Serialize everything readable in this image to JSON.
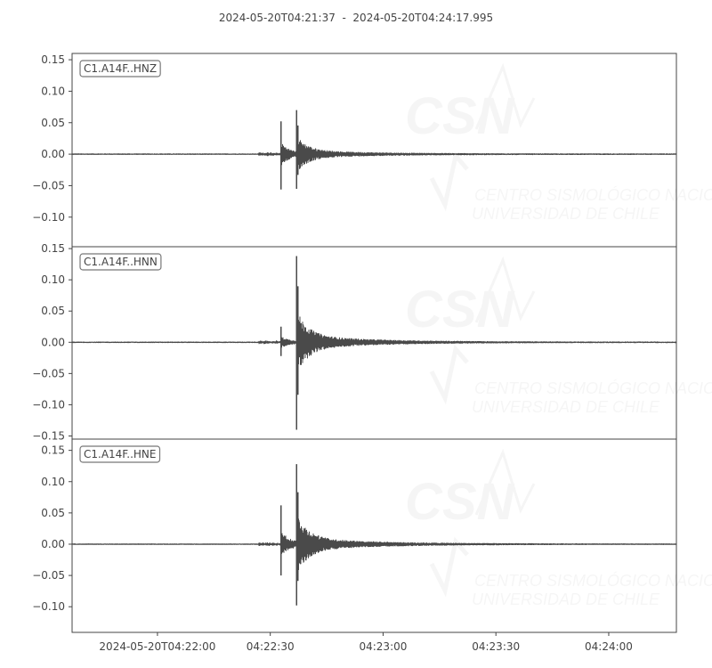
{
  "chart_data": {
    "type": "line",
    "title": "2024-05-20T04:21:37  -  2024-05-20T04:24:17.995",
    "xlim": [
      "04:21:37",
      "04:24:17.995"
    ],
    "x_ticks": [
      {
        "time": "04:22:00",
        "label": "2024-05-20T04:22:00"
      },
      {
        "time": "04:22:30",
        "label": "04:22:30"
      },
      {
        "time": "04:23:00",
        "label": "04:23:00"
      },
      {
        "time": "04:23:30",
        "label": "04:23:30"
      },
      {
        "time": "04:24:00",
        "label": "04:24:00"
      }
    ],
    "line_color": "#4a4a4a",
    "grid": false,
    "watermark": {
      "logo": "CSN",
      "line1": "CENTRO SISMOLÓGICO NACIONAL",
      "line2": "UNIVERSIDAD DE CHILE"
    },
    "series": [
      {
        "name": "C1.A14F..HNZ",
        "ylim": [
          -0.147,
          0.16
        ],
        "y_ticks": [
          0.15,
          0.1,
          0.05,
          0.0,
          -0.05,
          -0.1
        ],
        "y_tick_labels": [
          "0.15",
          "0.10",
          "0.05",
          "0.00",
          "−0.05",
          "−0.10"
        ],
        "p_arrival": "04:22:32.8",
        "s_arrival": "04:22:37.0",
        "p_peak": [
          0.052,
          -0.056
        ],
        "s_peak": [
          0.07,
          -0.055
        ]
      },
      {
        "name": "C1.A14F..HNN",
        "ylim": [
          -0.155,
          0.153
        ],
        "y_ticks": [
          0.15,
          0.1,
          0.05,
          0.0,
          -0.05,
          -0.1,
          -0.15
        ],
        "y_tick_labels": [
          "0.15",
          "0.10",
          "0.05",
          "0.00",
          "−0.05",
          "−0.10",
          "−0.15"
        ],
        "p_arrival": "04:22:32.8",
        "s_arrival": "04:22:37.0",
        "p_peak": [
          0.025,
          -0.022
        ],
        "s_peak": [
          0.138,
          -0.14
        ]
      },
      {
        "name": "C1.A14F..HNE",
        "ylim": [
          -0.141,
          0.168
        ],
        "y_ticks": [
          0.15,
          0.1,
          0.05,
          0.0,
          -0.05,
          -0.1
        ],
        "y_tick_labels": [
          "0.15",
          "0.10",
          "0.05",
          "0.00",
          "−0.05",
          "−0.10"
        ],
        "p_arrival": "04:22:32.8",
        "s_arrival": "04:22:37.0",
        "p_peak": [
          0.062,
          -0.05
        ],
        "s_peak": [
          0.128,
          -0.098
        ]
      }
    ]
  }
}
